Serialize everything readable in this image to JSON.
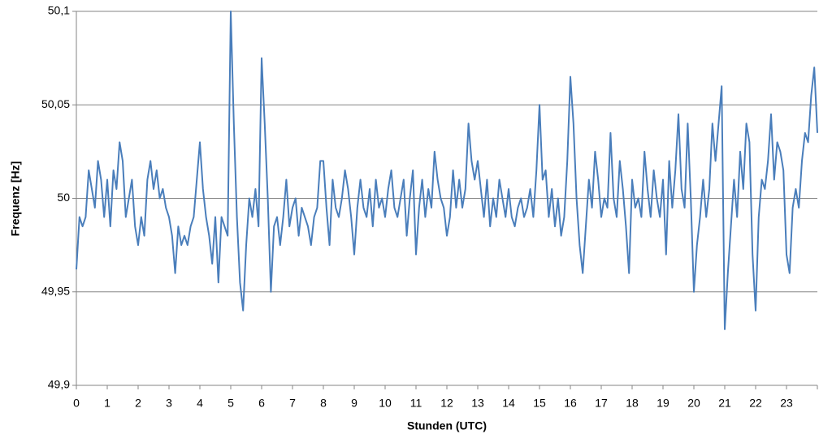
{
  "chart_data": {
    "type": "line",
    "xlabel": "Stunden (UTC)",
    "ylabel": "Frequenz [Hz]",
    "color": "#4a7ebb",
    "grid": true,
    "xlim": [
      0,
      24
    ],
    "ylim": [
      49.9,
      50.1
    ],
    "xticks": [
      0,
      1,
      2,
      3,
      4,
      5,
      6,
      7,
      8,
      9,
      10,
      11,
      12,
      13,
      14,
      15,
      16,
      17,
      18,
      19,
      20,
      21,
      22,
      23
    ],
    "yticks": [
      {
        "value": 49.9,
        "label": "49,9"
      },
      {
        "value": 49.95,
        "label": "49,95"
      },
      {
        "value": 50,
        "label": "50"
      },
      {
        "value": 50.05,
        "label": "50,05"
      },
      {
        "value": 50.1,
        "label": "50,1"
      }
    ],
    "x": [
      0,
      0.1,
      0.2,
      0.3,
      0.4,
      0.5,
      0.6,
      0.7,
      0.8,
      0.9,
      1,
      1.1,
      1.2,
      1.3,
      1.4,
      1.5,
      1.6,
      1.7,
      1.8,
      1.9,
      2,
      2.1,
      2.2,
      2.3,
      2.4,
      2.5,
      2.6,
      2.7,
      2.8,
      2.9,
      3,
      3.1,
      3.2,
      3.3,
      3.4,
      3.5,
      3.6,
      3.7,
      3.8,
      3.9,
      4,
      4.1,
      4.2,
      4.3,
      4.4,
      4.5,
      4.6,
      4.7,
      4.8,
      4.9,
      5,
      5.1,
      5.2,
      5.3,
      5.4,
      5.5,
      5.6,
      5.7,
      5.8,
      5.9,
      6,
      6.1,
      6.2,
      6.3,
      6.4,
      6.5,
      6.6,
      6.7,
      6.8,
      6.9,
      7,
      7.1,
      7.2,
      7.3,
      7.4,
      7.5,
      7.6,
      7.7,
      7.8,
      7.9,
      8,
      8.1,
      8.2,
      8.3,
      8.4,
      8.5,
      8.6,
      8.7,
      8.8,
      8.9,
      9,
      9.1,
      9.2,
      9.3,
      9.4,
      9.5,
      9.6,
      9.7,
      9.8,
      9.9,
      10,
      10.1,
      10.2,
      10.3,
      10.4,
      10.5,
      10.6,
      10.7,
      10.8,
      10.9,
      11,
      11.1,
      11.2,
      11.3,
      11.4,
      11.5,
      11.6,
      11.7,
      11.8,
      11.9,
      12,
      12.1,
      12.2,
      12.3,
      12.4,
      12.5,
      12.6,
      12.7,
      12.8,
      12.9,
      13,
      13.1,
      13.2,
      13.3,
      13.4,
      13.5,
      13.6,
      13.7,
      13.8,
      13.9,
      14,
      14.1,
      14.2,
      14.3,
      14.4,
      14.5,
      14.6,
      14.7,
      14.8,
      14.9,
      15,
      15.1,
      15.2,
      15.3,
      15.4,
      15.5,
      15.6,
      15.7,
      15.8,
      15.9,
      16,
      16.1,
      16.2,
      16.3,
      16.4,
      16.5,
      16.6,
      16.7,
      16.8,
      16.9,
      17,
      17.1,
      17.2,
      17.3,
      17.4,
      17.5,
      17.6,
      17.7,
      17.8,
      17.9,
      18,
      18.1,
      18.2,
      18.3,
      18.4,
      18.5,
      18.6,
      18.7,
      18.8,
      18.9,
      19,
      19.1,
      19.2,
      19.3,
      19.4,
      19.5,
      19.6,
      19.7,
      19.8,
      19.9,
      20,
      20.1,
      20.2,
      20.3,
      20.4,
      20.5,
      20.6,
      20.7,
      20.8,
      20.9,
      21,
      21.1,
      21.2,
      21.3,
      21.4,
      21.5,
      21.6,
      21.7,
      21.8,
      21.9,
      22,
      22.1,
      22.2,
      22.3,
      22.4,
      22.5,
      22.6,
      22.7,
      22.8,
      22.9,
      23,
      23.1,
      23.2,
      23.3,
      23.4,
      23.5,
      23.6,
      23.7,
      23.8,
      23.9,
      24
    ],
    "values": [
      49.962,
      49.99,
      49.985,
      49.99,
      50.015,
      50.005,
      49.995,
      50.02,
      50.01,
      49.99,
      50.01,
      49.985,
      50.015,
      50.005,
      50.03,
      50.02,
      49.99,
      50.0,
      50.01,
      49.985,
      49.975,
      49.99,
      49.98,
      50.01,
      50.02,
      50.005,
      50.015,
      50.0,
      50.005,
      49.995,
      49.99,
      49.98,
      49.96,
      49.985,
      49.975,
      49.98,
      49.975,
      49.985,
      49.99,
      50.01,
      50.03,
      50.005,
      49.99,
      49.98,
      49.965,
      49.99,
      49.955,
      49.99,
      49.985,
      49.98,
      50.1,
      50.04,
      49.99,
      49.955,
      49.94,
      49.975,
      50.0,
      49.99,
      50.005,
      49.985,
      50.075,
      50.04,
      50.0,
      49.95,
      49.985,
      49.99,
      49.975,
      49.99,
      50.01,
      49.985,
      49.995,
      50.0,
      49.98,
      49.995,
      49.99,
      49.985,
      49.975,
      49.99,
      49.995,
      50.02,
      50.02,
      49.995,
      49.975,
      50.01,
      49.995,
      49.99,
      50.0,
      50.015,
      50.005,
      49.99,
      49.97,
      49.995,
      50.01,
      49.995,
      49.99,
      50.005,
      49.985,
      50.01,
      49.995,
      50.0,
      49.99,
      50.005,
      50.015,
      49.995,
      49.99,
      50.0,
      50.01,
      49.98,
      50.0,
      50.015,
      49.97,
      49.995,
      50.01,
      49.99,
      50.005,
      49.995,
      50.025,
      50.01,
      50.0,
      49.995,
      49.98,
      49.99,
      50.015,
      49.995,
      50.01,
      49.995,
      50.005,
      50.04,
      50.02,
      50.01,
      50.02,
      50.005,
      49.99,
      50.01,
      49.985,
      50.0,
      49.99,
      50.01,
      50.0,
      49.99,
      50.005,
      49.99,
      49.985,
      49.995,
      50.0,
      49.99,
      49.995,
      50.005,
      49.99,
      50.015,
      50.05,
      50.01,
      50.015,
      49.99,
      50.005,
      49.985,
      50.0,
      49.98,
      49.99,
      50.02,
      50.065,
      50.04,
      50.0,
      49.975,
      49.96,
      49.985,
      50.01,
      49.995,
      50.025,
      50.01,
      49.99,
      50.0,
      49.995,
      50.035,
      50.0,
      49.99,
      50.02,
      50.005,
      49.985,
      49.96,
      50.01,
      49.995,
      50.0,
      49.99,
      50.025,
      50.005,
      49.99,
      50.015,
      50.0,
      49.99,
      50.01,
      49.97,
      50.02,
      49.995,
      50.015,
      50.045,
      50.005,
      49.995,
      50.04,
      50.0,
      49.95,
      49.975,
      49.99,
      50.01,
      49.99,
      50.005,
      50.04,
      50.02,
      50.04,
      50.06,
      49.93,
      49.96,
      49.985,
      50.01,
      49.99,
      50.025,
      50.005,
      50.04,
      50.03,
      49.97,
      49.94,
      49.99,
      50.01,
      50.005,
      50.02,
      50.045,
      50.01,
      50.03,
      50.025,
      50.015,
      49.97,
      49.96,
      49.995,
      50.005,
      49.995,
      50.02,
      50.035,
      50.03,
      50.055,
      50.07,
      50.035
    ]
  }
}
